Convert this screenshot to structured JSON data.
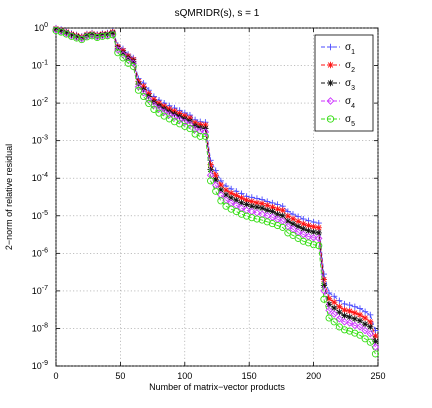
{
  "chart_data": {
    "type": "line",
    "title": "sQMRIDR(s),  s = 1",
    "xlabel": "Number of matrix−vector products",
    "ylabel": "2−norm of relative residual",
    "xlim": [
      0,
      250
    ],
    "ylim": [
      1e-09,
      1
    ],
    "y_scale": "log",
    "xticks": [
      0,
      50,
      100,
      150,
      200,
      250
    ],
    "xtick_labels": [
      "0",
      "50",
      "100",
      "150",
      "200",
      "250"
    ],
    "yticks": [
      1,
      0.1,
      0.01,
      0.001,
      0.0001,
      1e-05,
      1e-06,
      1e-07,
      1e-08,
      1e-09
    ],
    "ytick_labels": [
      {
        "base": "10",
        "exp": "0"
      },
      {
        "base": "10",
        "exp": "-1"
      },
      {
        "base": "10",
        "exp": "-2"
      },
      {
        "base": "10",
        "exp": "-3"
      },
      {
        "base": "10",
        "exp": "-4"
      },
      {
        "base": "10",
        "exp": "-5"
      },
      {
        "base": "10",
        "exp": "-6"
      },
      {
        "base": "10",
        "exp": "-7"
      },
      {
        "base": "10",
        "exp": "-8"
      },
      {
        "base": "10",
        "exp": "-9"
      }
    ],
    "grid": true,
    "legend_position": "top-right",
    "x": [
      0,
      4,
      8,
      12,
      16,
      20,
      24,
      28,
      32,
      36,
      40,
      44,
      48,
      52,
      56,
      60,
      64,
      68,
      72,
      76,
      80,
      84,
      88,
      92,
      96,
      100,
      104,
      108,
      112,
      116,
      120,
      124,
      128,
      132,
      136,
      140,
      144,
      148,
      152,
      156,
      160,
      164,
      168,
      172,
      176,
      180,
      184,
      188,
      192,
      196,
      200,
      204,
      208,
      212,
      216,
      220,
      224,
      228,
      232,
      236,
      240,
      244,
      248
    ],
    "series": [
      {
        "name": "σ",
        "subscript": "1",
        "color": "#4b4bff",
        "marker": "plus",
        "values": [
          1.0,
          0.92,
          0.82,
          0.72,
          0.66,
          0.6,
          0.7,
          0.74,
          0.68,
          0.72,
          0.74,
          0.82,
          0.35,
          0.28,
          0.2,
          0.16,
          0.045,
          0.034,
          0.022,
          0.015,
          0.012,
          0.01,
          0.0085,
          0.0074,
          0.0064,
          0.0055,
          0.0048,
          0.0036,
          0.0032,
          0.0031,
          0.0003,
          0.00016,
          8.5e-05,
          6.2e-05,
          5.2e-05,
          4.5e-05,
          3.9e-05,
          3.3e-05,
          3.1e-05,
          2.9e-05,
          2.7e-05,
          2.4e-05,
          2.2e-05,
          2e-05,
          1.8e-05,
          1.3e-05,
          1.1e-05,
          9.5e-06,
          8.2e-06,
          7.4e-06,
          6.8e-06,
          6.4e-06,
          2.8e-07,
          8.8e-08,
          7.2e-08,
          5.5e-08,
          4.5e-08,
          4.2e-08,
          3.8e-08,
          3.4e-08,
          2.8e-08,
          2.3e-08,
          8.8e-09
        ]
      },
      {
        "name": "σ",
        "subscript": "2",
        "color": "#ff1111",
        "marker": "star",
        "values": [
          0.96,
          0.88,
          0.79,
          0.69,
          0.63,
          0.58,
          0.67,
          0.71,
          0.65,
          0.69,
          0.71,
          0.78,
          0.32,
          0.25,
          0.18,
          0.145,
          0.038,
          0.028,
          0.018,
          0.0125,
          0.01,
          0.0083,
          0.007,
          0.0061,
          0.0053,
          0.0046,
          0.004,
          0.003,
          0.0027,
          0.0026,
          0.00023,
          0.00012,
          6.6e-05,
          4.8e-05,
          4e-05,
          3.5e-05,
          3e-05,
          2.6e-05,
          2.4e-05,
          2.2e-05,
          2.1e-05,
          1.9e-05,
          1.7e-05,
          1.5e-05,
          1.4e-05,
          9.8e-06,
          8.3e-06,
          7.1e-06,
          6.1e-06,
          5.5e-06,
          5.1e-06,
          4.8e-06,
          2e-07,
          6.2e-08,
          5e-08,
          3.8e-08,
          3.1e-08,
          2.9e-08,
          2.6e-08,
          2.3e-08,
          1.9e-08,
          1.5e-08,
          6.3e-09
        ]
      },
      {
        "name": "σ",
        "subscript": "3",
        "color": "#111111",
        "marker": "star",
        "values": [
          0.93,
          0.85,
          0.76,
          0.66,
          0.6,
          0.55,
          0.64,
          0.68,
          0.62,
          0.66,
          0.68,
          0.74,
          0.29,
          0.22,
          0.16,
          0.13,
          0.032,
          0.023,
          0.015,
          0.0105,
          0.0084,
          0.007,
          0.0059,
          0.0051,
          0.0044,
          0.0038,
          0.0033,
          0.0025,
          0.0022,
          0.0021,
          0.00017,
          9e-05,
          4.9e-05,
          3.6e-05,
          3e-05,
          2.6e-05,
          2.2e-05,
          2e-05,
          1.8e-05,
          1.7e-05,
          1.6e-05,
          1.4e-05,
          1.3e-05,
          1.1e-05,
          1e-05,
          7.2e-06,
          6.1e-06,
          5.2e-06,
          4.5e-06,
          4e-06,
          3.7e-06,
          3.5e-06,
          1.4e-07,
          4.4e-08,
          3.5e-08,
          2.7e-08,
          2.2e-08,
          2e-08,
          1.8e-08,
          1.6e-08,
          1.3e-08,
          1.1e-08,
          4.5e-09
        ]
      },
      {
        "name": "σ",
        "subscript": "4",
        "color": "#cc33ff",
        "marker": "diamond",
        "values": [
          0.9,
          0.82,
          0.73,
          0.63,
          0.57,
          0.52,
          0.61,
          0.65,
          0.59,
          0.63,
          0.65,
          0.7,
          0.26,
          0.195,
          0.14,
          0.115,
          0.027,
          0.019,
          0.0125,
          0.0088,
          0.007,
          0.0058,
          0.0049,
          0.0042,
          0.0036,
          0.0031,
          0.0027,
          0.002,
          0.0018,
          0.0017,
          0.00012,
          6.5e-05,
          3.6e-05,
          2.6e-05,
          2.2e-05,
          1.9e-05,
          1.6e-05,
          1.4e-05,
          1.3e-05,
          1.2e-05,
          1.1e-05,
          1e-05,
          9.2e-06,
          8.1e-06,
          7.2e-06,
          5.2e-06,
          4.4e-06,
          3.7e-06,
          3.2e-06,
          2.8e-06,
          2.6e-06,
          2.5e-06,
          1e-07,
          3e-08,
          2.4e-08,
          1.8e-08,
          1.5e-08,
          1.4e-08,
          1.2e-08,
          1.1e-08,
          8.8e-09,
          7.2e-09,
          3.2e-09
        ]
      },
      {
        "name": "σ",
        "subscript": "5",
        "color": "#33dd11",
        "marker": "circle",
        "values": [
          0.86,
          0.78,
          0.69,
          0.6,
          0.54,
          0.49,
          0.58,
          0.62,
          0.56,
          0.6,
          0.62,
          0.66,
          0.22,
          0.16,
          0.115,
          0.095,
          0.022,
          0.015,
          0.0098,
          0.0068,
          0.0054,
          0.0045,
          0.0038,
          0.0032,
          0.0028,
          0.0024,
          0.0021,
          0.0015,
          0.0013,
          0.0013,
          8.5e-05,
          4.5e-05,
          2.5e-05,
          1.8e-05,
          1.5e-05,
          1.3e-05,
          1.1e-05,
          9.8e-06,
          8.9e-06,
          8.2e-06,
          7.7e-06,
          6.9e-06,
          6.2e-06,
          5.5e-06,
          4.9e-06,
          3.5e-06,
          3e-06,
          2.5e-06,
          2.1e-06,
          1.9e-06,
          1.7e-06,
          1.6e-06,
          6e-08,
          1.9e-08,
          1.5e-08,
          1.1e-08,
          9.2e-09,
          8.5e-09,
          7.5e-09,
          6.6e-09,
          5.3e-09,
          4.3e-09,
          2.1e-09
        ]
      }
    ]
  }
}
